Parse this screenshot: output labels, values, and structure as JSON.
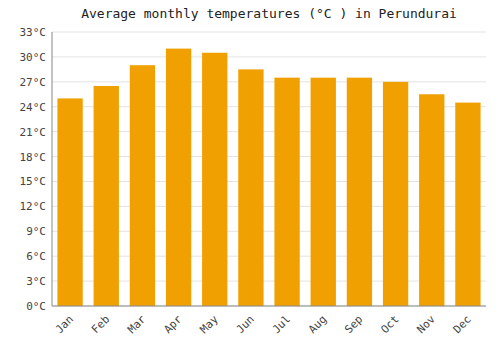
{
  "chart_data": {
    "type": "bar",
    "title": "Average monthly temperatures (°C ) in Perundurai",
    "categories": [
      "Jan",
      "Feb",
      "Mar",
      "Apr",
      "May",
      "Jun",
      "Jul",
      "Aug",
      "Sep",
      "Oct",
      "Nov",
      "Dec"
    ],
    "values": [
      25.0,
      26.5,
      29.0,
      31.0,
      30.5,
      28.5,
      27.5,
      27.5,
      27.5,
      27.0,
      25.5,
      24.5
    ],
    "color": "#F0A000",
    "ylim": [
      0,
      33
    ],
    "yticks": [
      {
        "value": 0,
        "label": "0°C"
      },
      {
        "value": 3,
        "label": "3°C"
      },
      {
        "value": 6,
        "label": "6°C"
      },
      {
        "value": 9,
        "label": "9°C"
      },
      {
        "value": 12,
        "label": "12°C"
      },
      {
        "value": 15,
        "label": "15°C"
      },
      {
        "value": 18,
        "label": "18°C"
      },
      {
        "value": 21,
        "label": "21°C"
      },
      {
        "value": 24,
        "label": "24°C"
      },
      {
        "value": 27,
        "label": "27°C"
      },
      {
        "value": 30,
        "label": "30°C"
      },
      {
        "value": 33,
        "label": "33°C"
      }
    ],
    "grid": true
  }
}
